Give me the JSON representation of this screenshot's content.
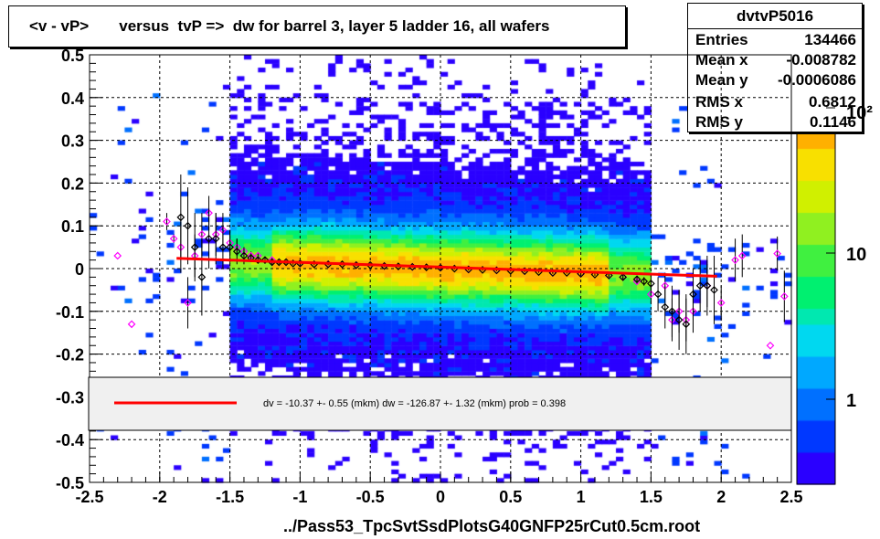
{
  "title": "<v - vP>       versus  tvP =>  dw for barrel 3, layer 5 ladder 16, all wafers",
  "x_axis_title": "../Pass53_TpcSvtSsdPlotsG40GNFP25rCut0.5cm.root",
  "stats": {
    "name": "dvtvP5016",
    "rows": [
      {
        "label": "Entries",
        "value": "134466"
      },
      {
        "label": "Mean x",
        "value": "-0.008782"
      },
      {
        "label": "Mean y",
        "value": "-0.0006086"
      },
      {
        "label": "RMS x",
        "value": "0.6812"
      },
      {
        "label": "RMS y",
        "value": "0.1146"
      }
    ]
  },
  "legend": {
    "fit_text": "dv =  -10.37 +-  0.55 (mkm) dw = -126.87 +-  1.32 (mkm) prob = 0.398",
    "line_color": "#ff0000"
  },
  "chart_data": {
    "type": "heatmap",
    "xlim": [
      -2.5,
      2.5
    ],
    "ylim": [
      -0.5,
      0.5
    ],
    "x_ticks": [
      "-2.5",
      "-2",
      "-1.5",
      "-1",
      "-0.5",
      "0",
      "0.5",
      "1",
      "1.5",
      "2",
      "2.5"
    ],
    "y_ticks": [
      "0.5",
      "0.4",
      "0.3",
      "0.2",
      "0.1",
      "0",
      "-0.1",
      "-0.2",
      "-0.3",
      "-0.4",
      "-0.5"
    ],
    "grid": true,
    "colorbar_ticks": [
      "1",
      "10",
      "10²"
    ],
    "fit_line": {
      "x": [
        -1.88,
        1.97
      ],
      "y": [
        0.024,
        -0.018
      ],
      "color": "#ff0000"
    },
    "profile_black": {
      "x": [
        -1.85,
        -1.8,
        -1.75,
        -1.7,
        -1.65,
        -1.6,
        -1.55,
        -1.5,
        -1.45,
        -1.4,
        -1.35,
        -1.3,
        -1.25,
        -1.2,
        -1.15,
        -1.1,
        -1.05,
        -1.0,
        -0.9,
        -0.8,
        -0.7,
        -0.6,
        -0.5,
        -0.4,
        -0.3,
        -0.2,
        -0.1,
        0.0,
        0.1,
        0.2,
        0.3,
        0.4,
        0.5,
        0.6,
        0.7,
        0.8,
        0.9,
        1.0,
        1.1,
        1.2,
        1.3,
        1.4,
        1.45,
        1.5,
        1.55,
        1.6,
        1.65,
        1.7,
        1.75,
        1.8,
        1.85,
        1.9,
        1.95
      ],
      "y": [
        0.12,
        0.1,
        0.05,
        -0.02,
        0.07,
        0.07,
        0.05,
        0.05,
        0.04,
        0.03,
        0.025,
        0.02,
        0.02,
        0.015,
        0.015,
        0.015,
        0.012,
        0.012,
        0.01,
        0.01,
        0.01,
        0.008,
        0.008,
        0.006,
        0.005,
        0.004,
        0.003,
        0.002,
        0.0,
        -0.002,
        -0.003,
        -0.004,
        -0.005,
        -0.006,
        -0.008,
        -0.01,
        -0.01,
        -0.012,
        -0.014,
        -0.016,
        -0.02,
        -0.025,
        -0.03,
        -0.035,
        -0.06,
        -0.09,
        -0.1,
        -0.12,
        -0.13,
        -0.06,
        -0.04,
        -0.04,
        -0.05
      ],
      "err": [
        0.1,
        0.09,
        0.08,
        0.09,
        0.07,
        0.06,
        0.05,
        0.04,
        0.03,
        0.02,
        0.01,
        0.008,
        0.006,
        0.005,
        0.004,
        0.004,
        0.003,
        0.003,
        0.002,
        0.002,
        0.002,
        0.002,
        0.002,
        0.002,
        0.002,
        0.002,
        0.002,
        0.002,
        0.002,
        0.002,
        0.002,
        0.002,
        0.002,
        0.002,
        0.002,
        0.002,
        0.002,
        0.003,
        0.003,
        0.004,
        0.005,
        0.008,
        0.01,
        0.02,
        0.04,
        0.05,
        0.06,
        0.07,
        0.07,
        0.06,
        0.06,
        0.07,
        0.08
      ]
    },
    "profile_magenta": {
      "x": [
        -2.3,
        -2.2,
        -1.95,
        -1.9,
        -1.85,
        -1.8,
        -1.75,
        -1.7,
        -1.65,
        -1.6,
        -1.55,
        -1.5,
        -1.45,
        -1.4,
        -1.35,
        -1.3,
        -1.2,
        -1.0,
        -0.8,
        -0.6,
        -0.4,
        -0.2,
        0.0,
        0.2,
        0.4,
        0.6,
        0.8,
        1.0,
        1.2,
        1.3,
        1.4,
        1.5,
        1.6,
        1.65,
        1.7,
        1.75,
        1.8,
        1.9,
        2.0,
        2.1,
        2.15,
        2.35,
        2.4,
        2.45
      ],
      "y": [
        0.03,
        -0.13,
        0.11,
        0.07,
        0.05,
        -0.08,
        0.03,
        0.08,
        0.13,
        0.08,
        0.09,
        0.06,
        0.05,
        0.04,
        0.03,
        0.03,
        0.02,
        0.012,
        0.01,
        0.008,
        0.006,
        0.004,
        0.002,
        -0.002,
        -0.004,
        -0.006,
        -0.01,
        -0.012,
        -0.016,
        -0.02,
        -0.03,
        -0.06,
        -0.04,
        -0.12,
        -0.1,
        -0.12,
        -0.1,
        -0.04,
        -0.08,
        0.02,
        0.03,
        -0.18,
        0.035,
        -0.065
      ],
      "err": [
        0,
        0,
        0.02,
        0.01,
        0.06,
        0.06,
        0.05,
        0.05,
        0.04,
        0.05,
        0.04,
        0.03,
        0.02,
        0.01,
        0.01,
        0.008,
        0.005,
        0.003,
        0.002,
        0.002,
        0.002,
        0.002,
        0.002,
        0.002,
        0.002,
        0.002,
        0.002,
        0.003,
        0.004,
        0.005,
        0.008,
        0.02,
        0.03,
        0.05,
        0.05,
        0.05,
        0.05,
        0.05,
        0.04,
        0.05,
        0.05,
        0,
        0.04,
        0.06
      ]
    }
  }
}
